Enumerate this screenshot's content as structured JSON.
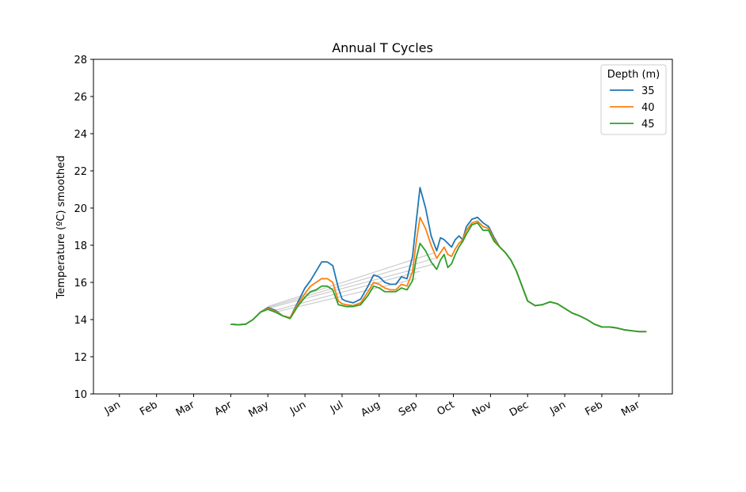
{
  "chart_data": {
    "type": "line",
    "title": "Annual T Cycles",
    "xlabel": "",
    "ylabel": "Temperature (ºC) smoothed",
    "ylim": [
      10,
      28
    ],
    "yticks": [
      10,
      12,
      14,
      16,
      18,
      20,
      22,
      24,
      26,
      28
    ],
    "xlim": [
      -0.7,
      14.9
    ],
    "xtick_positions": [
      0,
      1,
      2,
      3,
      4,
      5,
      6,
      7,
      8,
      9,
      10,
      11,
      12,
      13,
      14
    ],
    "xtick_labels": [
      "Jan",
      "Feb",
      "Mar",
      "Apr",
      "May",
      "Jun",
      "Jul",
      "Aug",
      "Sep",
      "Oct",
      "Nov",
      "Dec",
      "Jan",
      "Feb",
      "Mar"
    ],
    "x_unit_note": "x values are months since the first Jan tick",
    "legend": {
      "title": "Depth (m)",
      "placement": "top-right"
    },
    "grid": false,
    "series": [
      {
        "name": "35",
        "color": "#1f77b4",
        "x": [
          3.0,
          3.2,
          3.4,
          3.6,
          3.8,
          4.0,
          4.2,
          4.4,
          4.6,
          4.8,
          5.0,
          5.15,
          5.3,
          5.45,
          5.6,
          5.75,
          5.9,
          6.0,
          6.1,
          6.3,
          6.5,
          6.7,
          6.85,
          7.0,
          7.15,
          7.3,
          7.45,
          7.6,
          7.75,
          7.9,
          8.0,
          8.1,
          8.25,
          8.4,
          8.55,
          8.65,
          8.75,
          8.85,
          8.95,
          9.05,
          9.15,
          9.25,
          9.35,
          9.5,
          9.65,
          9.8,
          9.95,
          10.1,
          10.25,
          10.4,
          10.55,
          10.7,
          11.0,
          11.2,
          11.4,
          11.6,
          11.8,
          12.0,
          12.2,
          12.4,
          12.6,
          12.8,
          13.0,
          13.2,
          13.4,
          13.6,
          13.8,
          14.0,
          14.2
        ],
        "values": [
          13.75,
          13.72,
          13.75,
          14.0,
          14.4,
          14.65,
          14.5,
          14.2,
          14.1,
          14.9,
          15.7,
          16.1,
          16.6,
          17.1,
          17.1,
          16.9,
          15.7,
          15.1,
          15.0,
          14.9,
          15.1,
          15.8,
          16.4,
          16.3,
          16.0,
          15.9,
          15.9,
          16.3,
          16.2,
          17.4,
          19.3,
          21.1,
          20.0,
          18.5,
          17.7,
          18.4,
          18.3,
          18.1,
          17.9,
          18.3,
          18.5,
          18.3,
          19.0,
          19.4,
          19.5,
          19.2,
          19.0,
          18.4,
          17.9,
          17.6,
          17.2,
          16.6,
          15.0,
          14.75,
          14.8,
          14.95,
          14.85,
          14.6,
          14.35,
          14.2,
          14.0,
          13.75,
          13.6,
          13.6,
          13.55,
          13.45,
          13.4,
          13.35,
          13.35
        ]
      },
      {
        "name": "40",
        "color": "#ff7f0e",
        "x": [
          3.0,
          3.2,
          3.4,
          3.6,
          3.8,
          4.0,
          4.2,
          4.4,
          4.6,
          4.8,
          5.0,
          5.15,
          5.3,
          5.45,
          5.6,
          5.75,
          5.9,
          6.0,
          6.1,
          6.3,
          6.5,
          6.7,
          6.85,
          7.0,
          7.15,
          7.3,
          7.45,
          7.6,
          7.75,
          7.9,
          8.0,
          8.1,
          8.25,
          8.4,
          8.55,
          8.65,
          8.75,
          8.85,
          8.95,
          9.05,
          9.15,
          9.25,
          9.35,
          9.5,
          9.65,
          9.8,
          9.95,
          10.1,
          10.25,
          10.4,
          10.55,
          10.7,
          11.0,
          11.2,
          11.4,
          11.6,
          11.8,
          12.0,
          12.2,
          12.4,
          12.6,
          12.8,
          13.0,
          13.2,
          13.4,
          13.6,
          13.8,
          14.0,
          14.2
        ],
        "values": [
          13.75,
          13.72,
          13.75,
          14.0,
          14.4,
          14.6,
          14.45,
          14.2,
          14.1,
          14.8,
          15.4,
          15.8,
          16.0,
          16.2,
          16.2,
          16.0,
          15.0,
          14.85,
          14.8,
          14.75,
          14.9,
          15.5,
          16.0,
          15.9,
          15.7,
          15.6,
          15.6,
          15.9,
          15.8,
          16.6,
          18.2,
          19.5,
          18.9,
          18.0,
          17.3,
          17.6,
          17.9,
          17.5,
          17.4,
          17.8,
          18.1,
          18.3,
          18.8,
          19.2,
          19.3,
          19.0,
          18.9,
          18.3,
          17.9,
          17.6,
          17.2,
          16.6,
          15.0,
          14.75,
          14.8,
          14.95,
          14.85,
          14.6,
          14.35,
          14.2,
          14.0,
          13.75,
          13.6,
          13.6,
          13.55,
          13.45,
          13.4,
          13.35,
          13.35
        ]
      },
      {
        "name": "45",
        "color": "#2ca02c",
        "x": [
          3.0,
          3.2,
          3.4,
          3.6,
          3.8,
          4.0,
          4.2,
          4.4,
          4.6,
          4.8,
          5.0,
          5.15,
          5.3,
          5.45,
          5.6,
          5.75,
          5.9,
          6.0,
          6.1,
          6.3,
          6.5,
          6.7,
          6.85,
          7.0,
          7.15,
          7.3,
          7.45,
          7.6,
          7.75,
          7.9,
          8.0,
          8.1,
          8.25,
          8.4,
          8.55,
          8.65,
          8.75,
          8.85,
          8.95,
          9.05,
          9.15,
          9.25,
          9.35,
          9.5,
          9.65,
          9.8,
          9.95,
          10.1,
          10.25,
          10.4,
          10.55,
          10.7,
          11.0,
          11.2,
          11.4,
          11.6,
          11.8,
          12.0,
          12.2,
          12.4,
          12.6,
          12.8,
          13.0,
          13.2,
          13.4,
          13.6,
          13.8,
          14.0,
          14.2
        ],
        "values": [
          13.75,
          13.72,
          13.75,
          14.0,
          14.4,
          14.55,
          14.4,
          14.2,
          14.05,
          14.7,
          15.2,
          15.5,
          15.6,
          15.8,
          15.8,
          15.6,
          14.8,
          14.75,
          14.7,
          14.7,
          14.8,
          15.3,
          15.8,
          15.7,
          15.5,
          15.5,
          15.5,
          15.7,
          15.6,
          16.1,
          17.3,
          18.1,
          17.7,
          17.1,
          16.7,
          17.2,
          17.5,
          16.8,
          17.0,
          17.5,
          17.9,
          18.2,
          18.6,
          19.1,
          19.2,
          18.8,
          18.8,
          18.2,
          17.9,
          17.6,
          17.2,
          16.6,
          15.0,
          14.75,
          14.8,
          14.95,
          14.85,
          14.6,
          14.35,
          14.2,
          14.0,
          13.75,
          13.6,
          13.6,
          13.55,
          13.45,
          13.4,
          13.35,
          13.35
        ]
      }
    ],
    "connector_lines": {
      "color": "#cccccc",
      "lines": [
        {
          "x": [
            4.0,
            8.5
          ],
          "values": [
            14.7,
            17.6
          ]
        },
        {
          "x": [
            4.0,
            8.5
          ],
          "values": [
            14.65,
            17.3
          ]
        },
        {
          "x": [
            4.0,
            8.5
          ],
          "values": [
            14.6,
            17.0
          ]
        },
        {
          "x": [
            4.2,
            8.1
          ],
          "values": [
            14.5,
            16.6
          ]
        },
        {
          "x": [
            4.2,
            8.0
          ],
          "values": [
            14.4,
            16.2
          ]
        }
      ]
    }
  }
}
